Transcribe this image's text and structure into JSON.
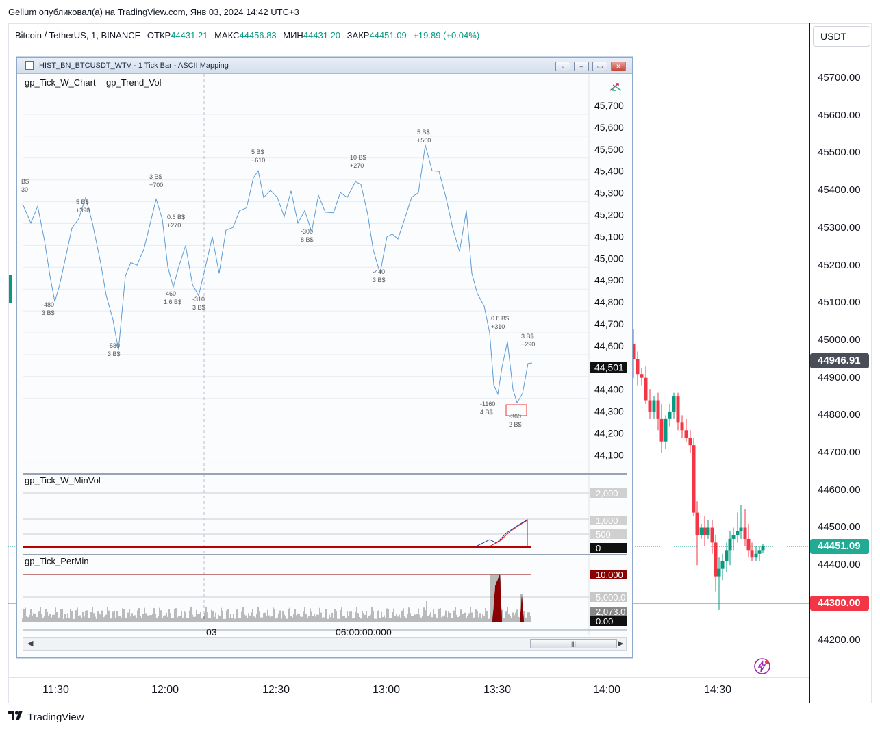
{
  "header": {
    "publish_line": "Gelium опубликовал(а) на TradingView.com, Янв 03, 2024 14:42 UTC+3"
  },
  "legend": {
    "symbol": "Bitcoin / TetherUS, 1, BINANCE",
    "open_label": "ОТКР",
    "open": "44431.21",
    "high_label": "МАКС",
    "high": "44456.83",
    "low_label": "МИН",
    "low": "44431.20",
    "close_label": "ЗАКР",
    "close": "44451.09",
    "change": "+19.89 (+0.04%)"
  },
  "currency": "USDT",
  "price_scale": [
    "45700.00",
    "45600.00",
    "45500.00",
    "45400.00",
    "45300.00",
    "45200.00",
    "45100.00",
    "45000.00",
    "44900.00",
    "44800.00",
    "44700.00",
    "44600.00",
    "44500.00",
    "44400.00",
    "44300.00",
    "44200.00"
  ],
  "badges": {
    "crosshair": "44946.91",
    "last": "44451.09",
    "line": "44300.00"
  },
  "time_axis": [
    "11:30",
    "12:00",
    "12:30",
    "13:00",
    "13:30",
    "14:00",
    "14:30"
  ],
  "brand": "TradingView",
  "window": {
    "title": "HIST_BN_BTCUSDT_WTV - 1 Tick Bar - ASCII Mapping",
    "pane1": {
      "names": [
        "gp_Tick_W_Chart",
        "gp_Trend_Vol"
      ],
      "scale": [
        "45,700",
        "45,600",
        "45,500",
        "45,400",
        "45,300",
        "45,200",
        "45,100",
        "45,000",
        "44,900",
        "44,800",
        "44,700",
        "44,600",
        "44,500",
        "44,400",
        "44,300",
        "44,200",
        "44,100"
      ],
      "current": "44,501",
      "annotations": [
        [
          "B$",
          "30"
        ],
        [
          "5 B$",
          "+390"
        ],
        [
          "3 B$",
          "+700"
        ],
        [
          "0.6 B$",
          "+270"
        ],
        [
          "5 B$",
          "+610"
        ],
        [
          "10 B$",
          "+270"
        ],
        [
          "5 B$",
          "+560"
        ],
        [
          "0.8 B$",
          "+310"
        ],
        [
          "3 B$",
          "+290"
        ],
        [
          "-480",
          "3 B$"
        ],
        [
          "-580",
          "3 B$"
        ],
        [
          "-460",
          "1.6 B$"
        ],
        [
          "-310",
          "3 B$"
        ],
        [
          "-300",
          "8 B$"
        ],
        [
          "-440",
          "3 B$"
        ],
        [
          "-1160",
          "4 B$"
        ],
        [
          "-360",
          "2 B$"
        ]
      ]
    },
    "pane2": {
      "name": "gp_Tick_W_MinVol",
      "scale": [
        "2,000",
        "1,000",
        "500",
        "0"
      ]
    },
    "pane3": {
      "name": "gp_Tick_PerMin",
      "scale": [
        "10,000",
        "5,000.0",
        "2,073.0",
        "0.00"
      ]
    },
    "xaxis": [
      "03",
      "06:00:00.000"
    ]
  },
  "colors": {
    "up": "#089981",
    "down": "#f23645",
    "tick_line": "#5b9bd5",
    "dark_red": "#8b0000"
  },
  "icons": [
    "tradingview-logo-icon",
    "flash-icon",
    "window-app-icon",
    "restore-icon",
    "minimize-icon",
    "maximize-icon",
    "close-icon",
    "sync-arrows-icon"
  ]
}
